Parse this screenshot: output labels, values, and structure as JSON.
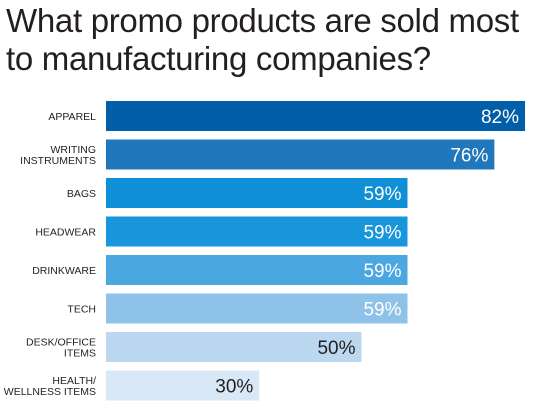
{
  "title_lines": [
    "What promo products are sold most",
    "to manufacturing companies?"
  ],
  "chart_data": {
    "type": "bar",
    "orientation": "horizontal",
    "title": "What promo products are sold most to manufacturing companies?",
    "categories": [
      [
        "APPAREL"
      ],
      [
        "WRITING",
        "INSTRUMENTS"
      ],
      [
        "BAGS"
      ],
      [
        "HEADWEAR"
      ],
      [
        "DRINKWARE"
      ],
      [
        "TECH"
      ],
      [
        "DESK/OFFICE",
        "ITEMS"
      ],
      [
        "HEALTH/",
        "WELLNESS ITEMS"
      ]
    ],
    "values": [
      82,
      76,
      59,
      59,
      59,
      59,
      50,
      30
    ],
    "value_labels": [
      "82%",
      "76%",
      "59%",
      "59%",
      "59%",
      "59%",
      "50%",
      "30%"
    ],
    "unit": "%",
    "xlim": [
      0,
      100
    ],
    "grid": false,
    "legend": "none",
    "bar_colors": [
      "#005fa8",
      "#2077bb",
      "#0f8fd6",
      "#1796dc",
      "#4aa7e0",
      "#8fc2e9",
      "#bcd8f1",
      "#d8e8f7"
    ],
    "label_colors": [
      "#ffffff",
      "#ffffff",
      "#ffffff",
      "#ffffff",
      "#ffffff",
      "#ffffff",
      "#231f20",
      "#231f20"
    ]
  }
}
